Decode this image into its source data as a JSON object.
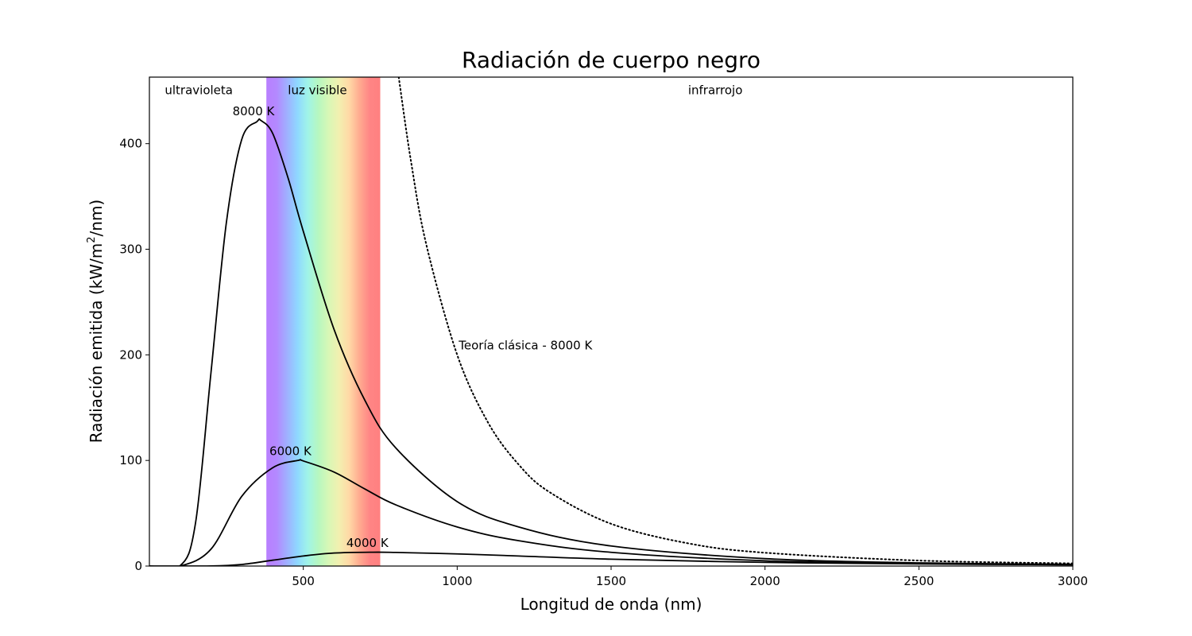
{
  "chart_data": {
    "type": "line",
    "title": "Radiación de cuerpo negro",
    "xlabel": "Longitud de onda (nm)",
    "ylabel": "Radiación emitida (kW/m²/nm)",
    "ylabel_parts": {
      "before": "Radiación emitida (kW/m",
      "sup": "2",
      "after": "/nm)"
    },
    "xlim": [
      0,
      3000
    ],
    "ylim": [
      0,
      463
    ],
    "xticks": [
      500,
      1000,
      1500,
      2000,
      2500,
      3000
    ],
    "yticks": [
      0,
      100,
      200,
      300,
      400
    ],
    "grid": false,
    "regions": [
      {
        "label": "ultravioleta",
        "x_range": [
          0,
          380
        ]
      },
      {
        "label": "luz visible",
        "x_range": [
          380,
          750
        ]
      },
      {
        "label": "infrarrojo",
        "x_range": [
          750,
          3000
        ]
      }
    ],
    "series": [
      {
        "name": "8000 K",
        "style": "solid",
        "x": [
          100,
          150,
          200,
          250,
          300,
          350,
          362,
          400,
          450,
          500,
          600,
          700,
          800,
          1000,
          1200,
          1500,
          2000,
          2500,
          3000
        ],
        "y": [
          0.4,
          41,
          183,
          325,
          404,
          421,
          422,
          410,
          368,
          317,
          224,
          157,
          112,
          61,
          37,
          19,
          7,
          3,
          1.6
        ]
      },
      {
        "name": "6000 K",
        "style": "solid",
        "x": [
          100,
          200,
          300,
          400,
          483,
          500,
          600,
          700,
          800,
          1000,
          1200,
          1500,
          2000,
          2500,
          3000
        ],
        "y": [
          0.0,
          16,
          66,
          93,
          100,
          99.5,
          89,
          73,
          58,
          37,
          24,
          13,
          5,
          2.4,
          1.2
        ]
      },
      {
        "name": "4000 K",
        "style": "solid",
        "x": [
          200,
          300,
          400,
          500,
          600,
          725,
          800,
          1000,
          1200,
          1500,
          2000,
          2500,
          3000
        ],
        "y": [
          0.1,
          1.5,
          5.5,
          9.5,
          12.3,
          13.1,
          12.9,
          11.5,
          9.5,
          6.5,
          3.5,
          2.0,
          1.2
        ]
      },
      {
        "name": "Teoría clásica - 8000 K",
        "style": "dotted",
        "x": [
          810,
          850,
          900,
          1000,
          1100,
          1200,
          1300,
          1500,
          1750,
          2000,
          2500,
          3000
        ],
        "y": [
          463,
          383,
          304,
          200,
          136,
          96,
          70,
          40,
          21.5,
          12.6,
          5.2,
          2.5
        ]
      }
    ],
    "annotations": [
      {
        "text": "8000 K",
        "x": 270,
        "y": 427
      },
      {
        "text": "6000 K",
        "x": 390,
        "y": 105
      },
      {
        "text": "4000 K",
        "x": 640,
        "y": 18
      },
      {
        "text": "Teoría clásica - 8000 K",
        "x": 1005,
        "y": 205
      },
      {
        "text": "ultravioleta",
        "x": 50,
        "y": 447
      },
      {
        "text": "luz visible",
        "x": 450,
        "y": 447
      },
      {
        "text": "infrarrojo",
        "x": 1750,
        "y": 447
      }
    ],
    "colors": {
      "curve": "#000000",
      "spectrum": [
        "#b97fff",
        "#b389ff",
        "#9fb0ff",
        "#8fd8ff",
        "#a0f4e8",
        "#b6f7c0",
        "#d7f7b6",
        "#f2f0b0",
        "#ffd9a6",
        "#ffab90",
        "#ff8585",
        "#ff8080"
      ]
    }
  }
}
